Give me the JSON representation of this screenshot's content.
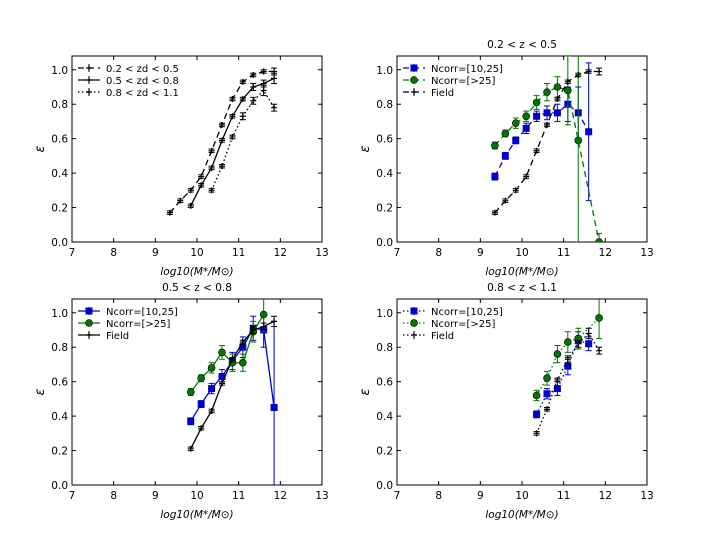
{
  "chart_data": [
    {
      "type": "line",
      "title": "",
      "xlabel": "log10(M*/M⊙)",
      "ylabel": "ε",
      "xlim": [
        7,
        13
      ],
      "ylim": [
        0.0,
        1.08
      ],
      "xticks": [
        "7",
        "8",
        "9",
        "10",
        "11",
        "12",
        "13"
      ],
      "yticks": [
        "0.0",
        "0.2",
        "0.4",
        "0.6",
        "0.8",
        "1.0"
      ],
      "legend_position": "top-left",
      "series": [
        {
          "name": "0.2 < zd < 0.5",
          "style": "dashed",
          "color": "#000000",
          "marker": "plus",
          "x": [
            9.35,
            9.6,
            9.85,
            10.1,
            10.35,
            10.6,
            10.85,
            11.1,
            11.35,
            11.6,
            11.85
          ],
          "y": [
            0.17,
            0.24,
            0.3,
            0.38,
            0.53,
            0.68,
            0.83,
            0.93,
            0.97,
            0.99,
            0.99
          ],
          "err": [
            0.01,
            0.01,
            0.01,
            0.01,
            0.01,
            0.01,
            0.01,
            0.01,
            0.01,
            0.01,
            0.02
          ]
        },
        {
          "name": "0.5 < zd < 0.8",
          "style": "solid",
          "color": "#000000",
          "marker": "plus",
          "x": [
            9.85,
            10.1,
            10.35,
            10.6,
            10.85,
            11.1,
            11.35,
            11.6,
            11.85
          ],
          "y": [
            0.21,
            0.33,
            0.43,
            0.59,
            0.73,
            0.83,
            0.9,
            0.92,
            0.95
          ],
          "err": [
            0.01,
            0.01,
            0.01,
            0.01,
            0.01,
            0.01,
            0.02,
            0.02,
            0.03
          ]
        },
        {
          "name": "0.8 < zd < 1.1",
          "style": "dotted",
          "color": "#000000",
          "marker": "plus",
          "x": [
            10.35,
            10.6,
            10.85,
            11.1,
            11.35,
            11.6,
            11.85
          ],
          "y": [
            0.3,
            0.44,
            0.61,
            0.73,
            0.82,
            0.88,
            0.78
          ],
          "err": [
            0.01,
            0.01,
            0.01,
            0.02,
            0.02,
            0.03,
            0.02
          ]
        }
      ]
    },
    {
      "type": "line",
      "title": "0.2 < z < 0.5",
      "xlabel": "log10(M*/M⊙)",
      "ylabel": "ε",
      "xlim": [
        7,
        13
      ],
      "ylim": [
        0.0,
        1.08
      ],
      "xticks": [
        "7",
        "8",
        "9",
        "10",
        "11",
        "12",
        "13"
      ],
      "yticks": [
        "0.0",
        "0.2",
        "0.4",
        "0.6",
        "0.8",
        "1.0"
      ],
      "legend_position": "top-left",
      "series": [
        {
          "name": "Ncorr=[10,25]",
          "style": "dashed",
          "color": "#0000cc",
          "marker": "square",
          "x": [
            9.35,
            9.6,
            9.85,
            10.1,
            10.35,
            10.6,
            10.85,
            11.1,
            11.35,
            11.6
          ],
          "y": [
            0.38,
            0.5,
            0.59,
            0.66,
            0.73,
            0.75,
            0.75,
            0.8,
            0.75,
            0.64
          ],
          "err": [
            0.02,
            0.02,
            0.02,
            0.03,
            0.03,
            0.04,
            0.05,
            0.1,
            0.15,
            0.4
          ]
        },
        {
          "name": "Ncorr=[>25]",
          "style": "dashed",
          "color": "#007700",
          "marker": "circle",
          "x": [
            9.35,
            9.6,
            9.85,
            10.1,
            10.35,
            10.6,
            10.85,
            11.1,
            11.35,
            11.85
          ],
          "y": [
            0.56,
            0.63,
            0.69,
            0.73,
            0.81,
            0.87,
            0.9,
            0.88,
            0.59,
            0.0
          ],
          "err": [
            0.02,
            0.02,
            0.03,
            0.03,
            0.04,
            0.05,
            0.06,
            0.2,
            0.6,
            0.05
          ]
        },
        {
          "name": "Field",
          "style": "dashed",
          "color": "#000000",
          "marker": "plus",
          "x": [
            9.35,
            9.6,
            9.85,
            10.1,
            10.35,
            10.6,
            10.85,
            11.1,
            11.35,
            11.6,
            11.85
          ],
          "y": [
            0.17,
            0.24,
            0.3,
            0.38,
            0.53,
            0.68,
            0.83,
            0.93,
            0.97,
            0.99,
            0.99
          ],
          "err": [
            0.01,
            0.01,
            0.01,
            0.01,
            0.01,
            0.01,
            0.01,
            0.01,
            0.01,
            0.01,
            0.02
          ]
        }
      ]
    },
    {
      "type": "line",
      "title": "0.5 < z < 0.8",
      "xlabel": "log10(M*/M⊙)",
      "ylabel": "ε",
      "xlim": [
        7,
        13
      ],
      "ylim": [
        0.0,
        1.08
      ],
      "xticks": [
        "7",
        "8",
        "9",
        "10",
        "11",
        "12",
        "13"
      ],
      "yticks": [
        "0.0",
        "0.2",
        "0.4",
        "0.6",
        "0.8",
        "1.0"
      ],
      "legend_position": "top-left",
      "series": [
        {
          "name": "Ncorr=[10,25]",
          "style": "solid",
          "color": "#0000cc",
          "marker": "square",
          "x": [
            9.85,
            10.1,
            10.35,
            10.6,
            10.85,
            11.1,
            11.35,
            11.6,
            11.85
          ],
          "y": [
            0.37,
            0.47,
            0.56,
            0.63,
            0.72,
            0.8,
            0.91,
            0.9,
            0.45
          ],
          "err": [
            0.02,
            0.02,
            0.03,
            0.04,
            0.05,
            0.06,
            0.07,
            0.1,
            0.5
          ]
        },
        {
          "name": "Ncorr=[>25]",
          "style": "solid",
          "color": "#007700",
          "marker": "circle",
          "x": [
            9.85,
            10.1,
            10.35,
            10.6,
            10.85,
            11.1,
            11.35,
            11.6
          ],
          "y": [
            0.54,
            0.62,
            0.68,
            0.77,
            0.71,
            0.71,
            0.89,
            0.99
          ],
          "err": [
            0.02,
            0.02,
            0.03,
            0.04,
            0.05,
            0.05,
            0.06,
            0.1
          ]
        },
        {
          "name": "Field",
          "style": "solid",
          "color": "#000000",
          "marker": "plus",
          "x": [
            9.85,
            10.1,
            10.35,
            10.6,
            10.85,
            11.1,
            11.35,
            11.6,
            11.85
          ],
          "y": [
            0.21,
            0.33,
            0.43,
            0.59,
            0.73,
            0.83,
            0.9,
            0.92,
            0.95
          ],
          "err": [
            0.01,
            0.01,
            0.01,
            0.01,
            0.01,
            0.01,
            0.02,
            0.02,
            0.03
          ]
        }
      ]
    },
    {
      "type": "line",
      "title": "0.8 < z < 1.1",
      "xlabel": "log10(M*/M⊙)",
      "ylabel": "ε",
      "xlim": [
        7,
        13
      ],
      "ylim": [
        0.0,
        1.08
      ],
      "xticks": [
        "7",
        "8",
        "9",
        "10",
        "11",
        "12",
        "13"
      ],
      "yticks": [
        "0.0",
        "0.2",
        "0.4",
        "0.6",
        "0.8",
        "1.0"
      ],
      "legend_position": "top-left",
      "series": [
        {
          "name": "Ncorr=[10,25]",
          "style": "dotted",
          "color": "#0000cc",
          "marker": "square",
          "x": [
            10.35,
            10.6,
            10.85,
            11.1,
            11.35,
            11.6
          ],
          "y": [
            0.41,
            0.53,
            0.56,
            0.69,
            0.84,
            0.82
          ],
          "err": [
            0.02,
            0.03,
            0.04,
            0.05,
            0.05,
            0.04
          ]
        },
        {
          "name": "Ncorr=[>25]",
          "style": "dotted",
          "color": "#007700",
          "marker": "circle",
          "x": [
            10.35,
            10.6,
            10.85,
            11.1,
            11.35,
            11.85
          ],
          "y": [
            0.52,
            0.62,
            0.76,
            0.83,
            0.85,
            0.97
          ],
          "err": [
            0.03,
            0.04,
            0.05,
            0.06,
            0.06,
            0.12
          ]
        },
        {
          "name": "Field",
          "style": "dotted",
          "color": "#000000",
          "marker": "plus",
          "x": [
            10.35,
            10.6,
            10.85,
            11.1,
            11.35,
            11.6,
            11.85
          ],
          "y": [
            0.3,
            0.44,
            0.61,
            0.73,
            0.82,
            0.88,
            0.78
          ],
          "err": [
            0.01,
            0.01,
            0.01,
            0.02,
            0.02,
            0.03,
            0.02
          ]
        }
      ]
    }
  ]
}
